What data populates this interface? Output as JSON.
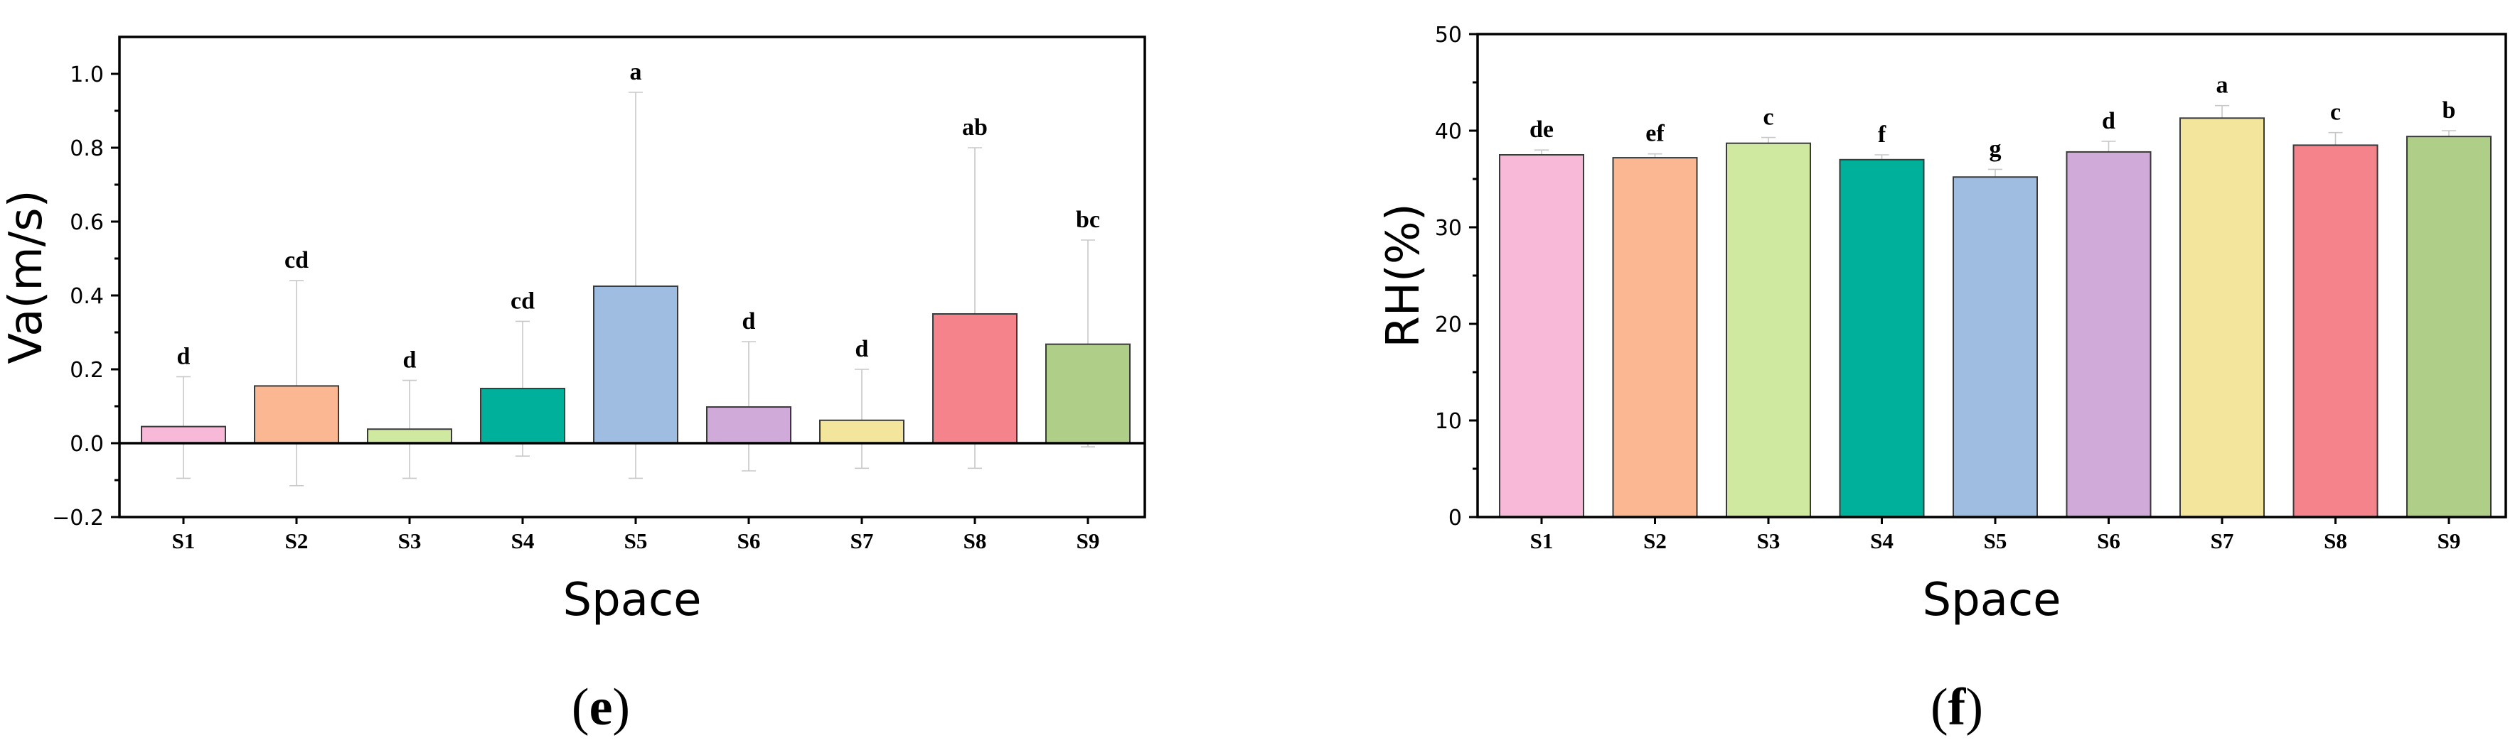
{
  "chart_data": [
    {
      "type": "bar",
      "panel": "e",
      "xlabel": "Space",
      "ylabel": "Va(m/s)",
      "ylim": [
        -0.2,
        1.1
      ],
      "yticks": [
        -0.2,
        0.0,
        0.2,
        0.4,
        0.6,
        0.8,
        1.0
      ],
      "ytick_labels": [
        "−0.2",
        "0.0",
        "0.2",
        "0.4",
        "0.6",
        "0.8",
        "1.0"
      ],
      "categories": [
        "S1",
        "S2",
        "S3",
        "S4",
        "S5",
        "S6",
        "S7",
        "S8",
        "S9"
      ],
      "values": [
        0.045,
        0.155,
        0.038,
        0.148,
        0.425,
        0.098,
        0.062,
        0.35,
        0.268
      ],
      "error_low": [
        -0.095,
        -0.115,
        -0.095,
        -0.035,
        -0.095,
        -0.075,
        -0.068,
        -0.068,
        -0.01
      ],
      "error_high": [
        0.18,
        0.44,
        0.17,
        0.33,
        0.95,
        0.275,
        0.2,
        0.8,
        0.55
      ],
      "significance": [
        "d",
        "cd",
        "d",
        "cd",
        "a",
        "d",
        "d",
        "ab",
        "bc"
      ],
      "colors": [
        "#f8b8d8",
        "#fbb792",
        "#cfeaa0",
        "#00b09a",
        "#9fbde1",
        "#d0aad9",
        "#f3e69c",
        "#f5838c",
        "#afcf89"
      ],
      "grid": false,
      "legend": "none"
    },
    {
      "type": "bar",
      "panel": "f",
      "xlabel": "Space",
      "ylabel": "RH(%)",
      "ylim": [
        0,
        50
      ],
      "yticks": [
        0,
        10,
        20,
        30,
        40,
        50
      ],
      "ytick_labels": [
        "0",
        "10",
        "20",
        "30",
        "40",
        "50"
      ],
      "categories": [
        "S1",
        "S2",
        "S3",
        "S4",
        "S5",
        "S6",
        "S7",
        "S8",
        "S9"
      ],
      "values": [
        37.5,
        37.2,
        38.7,
        37.0,
        35.2,
        37.8,
        41.3,
        38.5,
        39.4
      ],
      "error_low": [
        37.0,
        36.8,
        38.1,
        36.5,
        34.4,
        36.7,
        40.0,
        37.2,
        38.8
      ],
      "error_high": [
        38.0,
        37.6,
        39.3,
        37.5,
        36.0,
        38.9,
        42.6,
        39.8,
        40.0
      ],
      "significance": [
        "de",
        "ef",
        "c",
        "f",
        "g",
        "d",
        "a",
        "c",
        "b"
      ],
      "colors": [
        "#f8b8d8",
        "#fbb792",
        "#cfeaa0",
        "#00b09a",
        "#9fbde1",
        "#d0aad9",
        "#f3e69c",
        "#f5838c",
        "#afcf89"
      ],
      "grid": false,
      "legend": "none"
    }
  ]
}
